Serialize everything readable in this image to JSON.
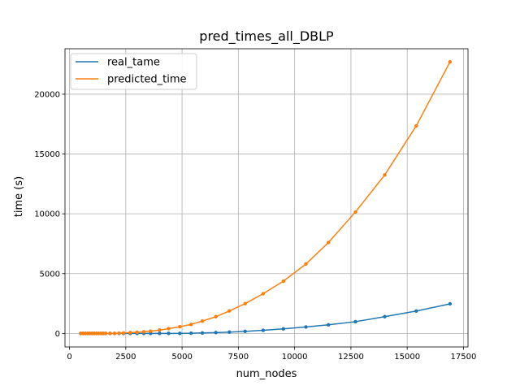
{
  "chart_data": {
    "type": "line",
    "title": "pred_times_all_DBLP",
    "xlabel": "num_nodes",
    "ylabel": "time (s)",
    "xlim": [
      -200,
      17700
    ],
    "ylim": [
      -1130,
      23800
    ],
    "xticks": [
      0,
      2500,
      5000,
      7500,
      10000,
      12500,
      15000,
      17500
    ],
    "yticks": [
      0,
      5000,
      10000,
      15000,
      20000
    ],
    "grid": true,
    "legend_position": "top-left",
    "series": [
      {
        "name": "real_tame",
        "color": "#1f77b4",
        "x": [
          500,
          600,
          700,
          800,
          900,
          1000,
          1100,
          1200,
          1300,
          1400,
          1500,
          1600,
          1800,
          2000,
          2200,
          2400,
          2700,
          3000,
          3300,
          3600,
          4000,
          4400,
          4900,
          5400,
          5900,
          6500,
          7100,
          7800,
          8600,
          9500,
          10500,
          11500,
          12700,
          14000,
          15400,
          16900
        ],
        "y": [
          0,
          0,
          0,
          0,
          0,
          0,
          0,
          0,
          0,
          0,
          0,
          0,
          0,
          0,
          0,
          0,
          0,
          0,
          0,
          0,
          0,
          0,
          0,
          20,
          40,
          70,
          110,
          170,
          260,
          380,
          540,
          720,
          980,
          1400,
          1870,
          2470
        ]
      },
      {
        "name": "predicted_time",
        "color": "#ff7f0e",
        "x": [
          500,
          600,
          700,
          800,
          900,
          1000,
          1100,
          1200,
          1300,
          1400,
          1500,
          1600,
          1800,
          2000,
          2200,
          2400,
          2700,
          3000,
          3300,
          3600,
          4000,
          4400,
          4900,
          5400,
          5900,
          6500,
          7100,
          7800,
          8600,
          9500,
          10500,
          11500,
          12700,
          14000,
          15400,
          16900
        ],
        "y": [
          0,
          0,
          0,
          0,
          0,
          0,
          0,
          0,
          0,
          0,
          0,
          0,
          0,
          0,
          20,
          40,
          70,
          100,
          140,
          190,
          280,
          400,
          560,
          750,
          1030,
          1400,
          1880,
          2490,
          3320,
          4370,
          5800,
          7600,
          10150,
          13250,
          17350,
          22700
        ]
      }
    ]
  }
}
